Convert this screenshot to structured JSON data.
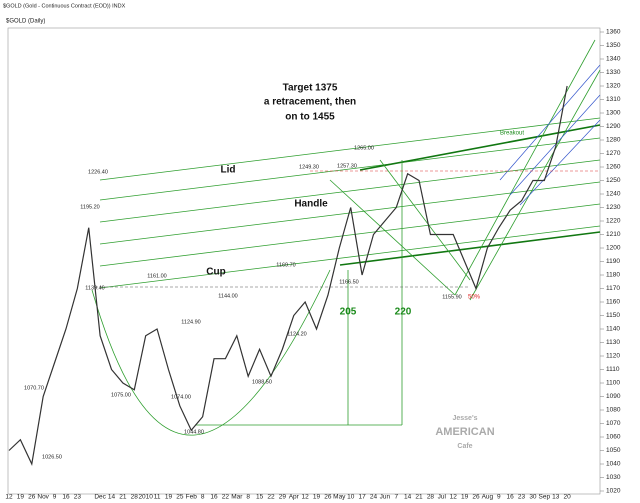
{
  "chart_data": {
    "type": "line",
    "title": "$GOLD (Gold - Continuous Contract (EOD)) INDX",
    "subtitle": "$GOLD (Daily)",
    "categories": [
      "12",
      "19",
      "26",
      "Nov",
      "9",
      "16",
      "23",
      null,
      "Dec",
      "14",
      "21",
      "28",
      "2010",
      "11",
      "19",
      "25",
      "Feb",
      "8",
      "16",
      "22",
      "Mar",
      "8",
      "15",
      "22",
      "29",
      "Apr",
      "12",
      "19",
      "26",
      "May",
      "10",
      "17",
      "24",
      "Jun",
      "7",
      "14",
      "21",
      "28",
      "Jul",
      "12",
      "19",
      "26",
      "Aug",
      "9",
      "16",
      "23",
      "30",
      "Sep",
      "13",
      "20"
    ],
    "series": [
      {
        "name": "Gold",
        "color": "#333333",
        "values": [
          1050,
          1058,
          1040,
          1090,
          1115,
          1140,
          1170,
          1215,
          1135,
          1110,
          1100,
          1095,
          1135,
          1140,
          1110,
          1083,
          1065,
          1075,
          1118,
          1118,
          1135,
          1105,
          1125,
          1105,
          1125,
          1150,
          1160,
          1140,
          1165,
          1200,
          1230,
          1180,
          1210,
          1220,
          1230,
          1255,
          1250,
          1210,
          1210,
          1210,
          1190,
          1170,
          1200,
          1215,
          1228,
          1235,
          1250,
          1250,
          1275,
          1320
        ]
      }
    ],
    "ylim": [
      1020,
      1360
    ],
    "yticks": [
      1020,
      1030,
      1040,
      1050,
      1060,
      1070,
      1080,
      1090,
      1100,
      1110,
      1120,
      1130,
      1140,
      1150,
      1160,
      1170,
      1180,
      1190,
      1200,
      1210,
      1220,
      1230,
      1240,
      1250,
      1260,
      1270,
      1280,
      1290,
      1300,
      1310,
      1320,
      1330,
      1340,
      1350,
      1360
    ],
    "price_labels": [
      {
        "value": 1226.4,
        "label": "1226.40"
      },
      {
        "value": 1195.2,
        "label": "1195.20"
      },
      {
        "value": 1139.4,
        "label": "1139.40"
      },
      {
        "value": 1070.7,
        "label": "1070.70"
      },
      {
        "value": 1026.5,
        "label": "1026.50"
      },
      {
        "value": 1075,
        "label": "1075.00"
      },
      {
        "value": 1161,
        "label": "1161.00"
      },
      {
        "value": 1124.9,
        "label": "1124.90"
      },
      {
        "value": 1074,
        "label": "1074.00"
      },
      {
        "value": 1044.8,
        "label": "1044.80"
      },
      {
        "value": 1144,
        "label": "1144.00"
      },
      {
        "value": 1169.7,
        "label": "1169.70"
      },
      {
        "value": 1124.2,
        "label": "1124.20"
      },
      {
        "value": 1088.5,
        "label": "1088.50"
      },
      {
        "value": 1249.3,
        "label": "1249.30"
      },
      {
        "value": 1257.3,
        "label": "1257.30"
      },
      {
        "value": 1265,
        "label": "1265.00"
      },
      {
        "value": 1166.5,
        "label": "1166.50"
      },
      {
        "value": 1155.9,
        "label": "1155.90"
      }
    ],
    "annotations": [
      "Target 1375",
      "a retracement, then",
      "on  to 1455",
      "Lid",
      "Handle",
      "Cup",
      "Breakout",
      "205",
      "220",
      "50%"
    ],
    "watermark": [
      "Jesse's",
      "AMERICAN",
      "Cafe"
    ]
  }
}
